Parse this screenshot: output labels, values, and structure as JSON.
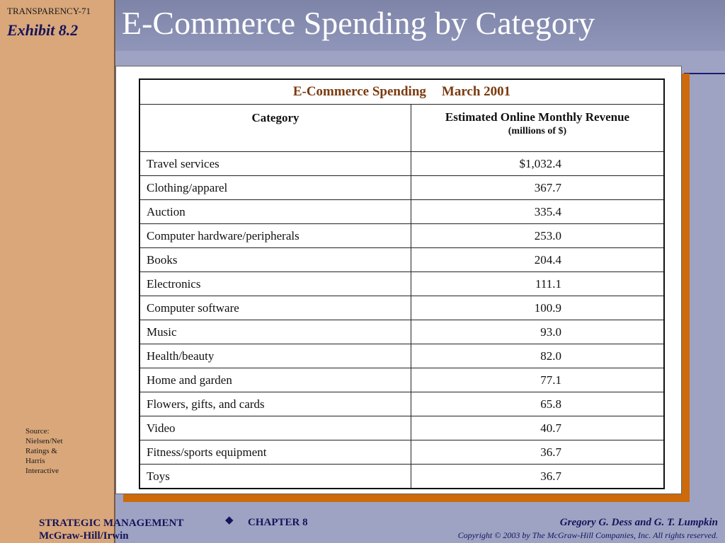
{
  "slide": {
    "transparency": "TRANSPARENCY-71",
    "exhibit": "Exhibit 8.2",
    "title": "E-Commerce Spending by Category"
  },
  "table": {
    "caption_title": "E-Commerce Spending",
    "caption_date": "March 2001",
    "header_category": "Category",
    "header_revenue": "Estimated Online Monthly Revenue",
    "header_revenue_sub": "(millions of $)",
    "rows": [
      {
        "category": "Travel services",
        "value": "$1,032.4"
      },
      {
        "category": "Clothing/apparel",
        "value": "367.7"
      },
      {
        "category": "Auction",
        "value": "335.4"
      },
      {
        "category": "Computer hardware/peripherals",
        "value": "253.0"
      },
      {
        "category": "Books",
        "value": "204.4"
      },
      {
        "category": "Electronics",
        "value": "111.1"
      },
      {
        "category": "Computer software",
        "value": "100.9"
      },
      {
        "category": "Music",
        "value": "93.0"
      },
      {
        "category": "Health/beauty",
        "value": "82.0"
      },
      {
        "category": "Home and garden",
        "value": "77.1"
      },
      {
        "category": "Flowers, gifts, and cards",
        "value": "65.8"
      },
      {
        "category": "Video",
        "value": "40.7"
      },
      {
        "category": "Fitness/sports equipment",
        "value": "36.7"
      },
      {
        "category": "Toys",
        "value": "36.7"
      }
    ]
  },
  "source": {
    "lines": [
      "Source:",
      "Nielsen/Net",
      "Ratings &",
      "Harris",
      "Interactive"
    ]
  },
  "footer": {
    "book": "STRATEGIC MANAGEMENT",
    "publisher": "McGraw-Hill/Irwin",
    "diamond": "◆",
    "chapter": "CHAPTER 8",
    "authors": "Gregory G. Dess and G. T. Lumpkin",
    "copyright": "Copyright © 2003 by The McGraw-Hill Companies, Inc.  All rights reserved."
  }
}
